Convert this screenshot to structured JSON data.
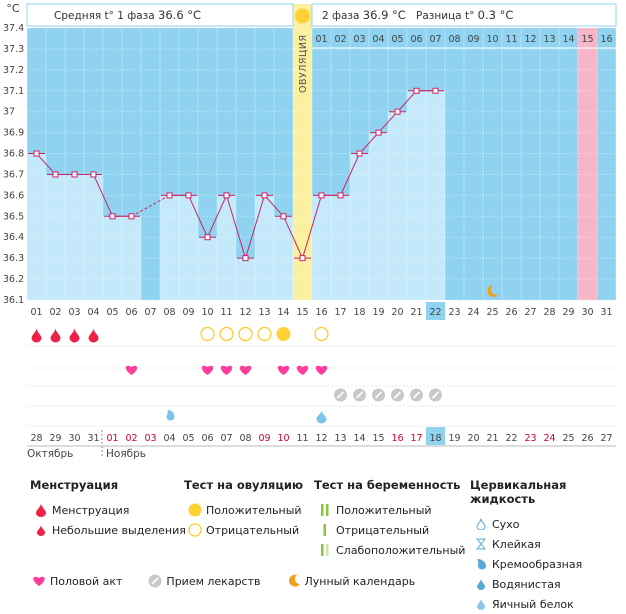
{
  "header": {
    "unit": "°C",
    "phase1_label": "Средняя t° 1 фаза",
    "phase1_value": "36.6 °C",
    "phase2_label": "2 фаза",
    "phase2_value": "36.9 °C",
    "diff_label": "Разница t°",
    "diff_value": "0.3 °C",
    "ovulation_label": "ОВУЛЯЦИЯ"
  },
  "chart_data": {
    "type": "line",
    "y_ticks": [
      "37.4",
      "37.3",
      "37.2",
      "37.1",
      "37",
      "36.9",
      "36.8",
      "36.7",
      "36.6",
      "36.5",
      "36.4",
      "36.3",
      "36.2",
      "36.1"
    ],
    "ylim": [
      36.1,
      37.4
    ],
    "cycle_days": [
      "01",
      "02",
      "03",
      "04",
      "05",
      "06",
      "07",
      "08",
      "09",
      "10",
      "11",
      "12",
      "13",
      "14",
      "15",
      "16",
      "17",
      "18",
      "19",
      "20",
      "21",
      "22",
      "23",
      "24",
      "25",
      "26",
      "27",
      "28",
      "29",
      "30",
      "31"
    ],
    "phase2_day_labels": [
      "01",
      "02",
      "03",
      "04",
      "05",
      "06",
      "07",
      "08",
      "09",
      "10",
      "11",
      "12",
      "13",
      "14",
      "15",
      "16"
    ],
    "temperatures": [
      36.8,
      36.7,
      36.7,
      36.7,
      36.5,
      36.5,
      null,
      36.6,
      36.6,
      36.4,
      36.6,
      36.3,
      36.6,
      36.5,
      36.3,
      36.6,
      36.6,
      36.8,
      36.9,
      37.0,
      37.1,
      37.1,
      null,
      null,
      null,
      null,
      null,
      null,
      null,
      null,
      null
    ],
    "ovulation_day": 15,
    "current_day": "22",
    "highlight_phase2_day": "15",
    "moon_day": 25,
    "calendar_days": [
      {
        "d": "28"
      },
      {
        "d": "29"
      },
      {
        "d": "30"
      },
      {
        "d": "31"
      },
      {
        "d": "01",
        "c": "#cc0033"
      },
      {
        "d": "02",
        "c": "#cc0033"
      },
      {
        "d": "03",
        "c": "#cc0033"
      },
      {
        "d": "04"
      },
      {
        "d": "05"
      },
      {
        "d": "06"
      },
      {
        "d": "07"
      },
      {
        "d": "08"
      },
      {
        "d": "09",
        "c": "#cc0033"
      },
      {
        "d": "10",
        "c": "#cc0033"
      },
      {
        "d": "11"
      },
      {
        "d": "12"
      },
      {
        "d": "13"
      },
      {
        "d": "14"
      },
      {
        "d": "15"
      },
      {
        "d": "16",
        "c": "#cc0033"
      },
      {
        "d": "17",
        "c": "#cc0033"
      },
      {
        "d": "18"
      },
      {
        "d": "19"
      },
      {
        "d": "20"
      },
      {
        "d": "21"
      },
      {
        "d": "22"
      },
      {
        "d": "23",
        "c": "#cc0033"
      },
      {
        "d": "24",
        "c": "#cc0033"
      },
      {
        "d": "25"
      },
      {
        "d": "26"
      },
      {
        "d": "27"
      }
    ],
    "month1": "Октябрь",
    "month2": "Ноябрь",
    "menstruation_days": [
      1,
      2,
      3,
      4
    ],
    "ovulation_test_positive": [
      14
    ],
    "ovulation_test_negative": [
      10,
      11,
      12,
      13,
      16
    ],
    "intercourse_days": [
      6,
      10,
      11,
      12,
      14,
      15,
      16
    ],
    "medication_days": [
      17,
      18,
      19,
      20,
      21,
      22
    ],
    "cervical_fluid": [
      {
        "day": 8,
        "type": "water"
      },
      {
        "day": 16,
        "type": "eggwhite"
      }
    ]
  },
  "legend": {
    "menstruation": {
      "title": "Менструация",
      "items": [
        "Менструация",
        "Небольшие выделения"
      ]
    },
    "ovulation_test": {
      "title": "Тест на овуляцию",
      "items": [
        "Положительный",
        "Отрицательный"
      ]
    },
    "pregnancy_test": {
      "title": "Тест на беременность",
      "items": [
        "Положительный",
        "Отрицательный",
        "Слабоположительный"
      ]
    },
    "cervical": {
      "title": "Цервикальная жидкость",
      "items": [
        "Сухо",
        "Клейкая",
        "Кремообразная",
        "Водянистая",
        "Яичный белок"
      ]
    },
    "bottom": [
      "Половой акт",
      "Прием лекарств",
      "Лунный календарь"
    ]
  },
  "colors": {
    "bg_blue": "#8fd3f0",
    "bar_fill": "#c4e9fb",
    "line": "#cc2266",
    "ovulation": "#faf0a0",
    "sun": "#ffd133",
    "red": "#ee2244",
    "heart": "#ff3d9a",
    "moon": "#f2a020",
    "pink_col": "#f7b6c8"
  }
}
